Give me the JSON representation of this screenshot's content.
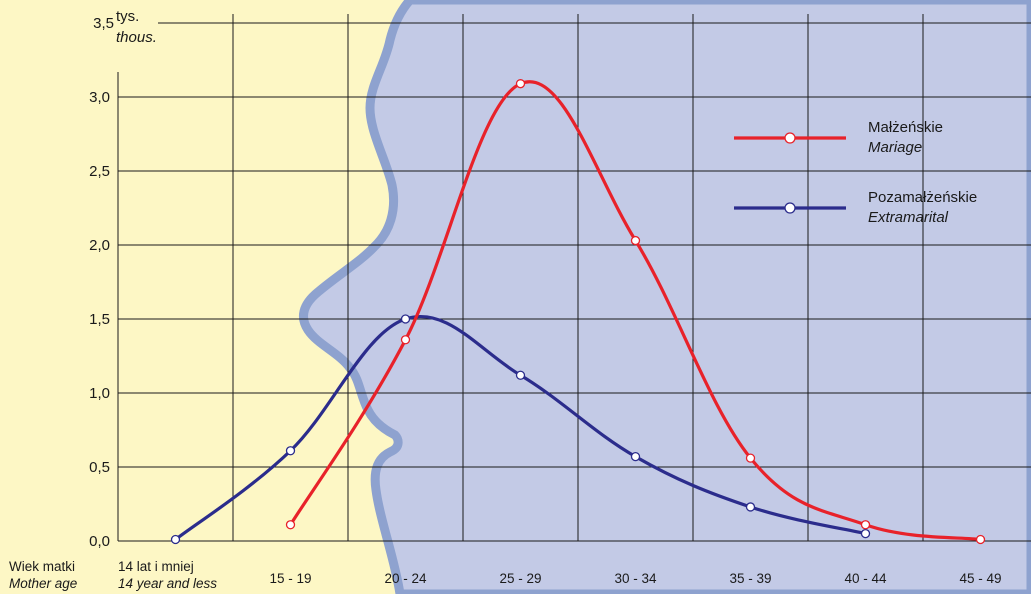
{
  "chart_data": {
    "type": "line",
    "y_unit": {
      "line1": "tys.",
      "line2": "thous."
    },
    "ylim": [
      0,
      3.5
    ],
    "y_ticks": [
      "0,0",
      "0,5",
      "1,0",
      "1,5",
      "2,0",
      "2,5",
      "3,0",
      "3,5"
    ],
    "y_tick_values": [
      0,
      0.5,
      1.0,
      1.5,
      2.0,
      2.5,
      3.0,
      3.5
    ],
    "categories": [
      {
        "line1": "14 lat i mniej",
        "line2": "14 year and less"
      },
      {
        "line1": "15 - 19",
        "line2": ""
      },
      {
        "line1": "20 - 24",
        "line2": ""
      },
      {
        "line1": "25 - 29",
        "line2": ""
      },
      {
        "line1": "30 - 34",
        "line2": ""
      },
      {
        "line1": "35 - 39",
        "line2": ""
      },
      {
        "line1": "40 - 44",
        "line2": ""
      },
      {
        "line1": "45 - 49",
        "line2": ""
      }
    ],
    "xlabel": {
      "line1": "Wiek matki",
      "line2": "Mother age"
    },
    "series": [
      {
        "name": "Małżeńskie",
        "name2": "Mariage",
        "color": "#e8222a",
        "values": [
          null,
          0.11,
          1.36,
          3.09,
          2.03,
          0.56,
          0.11,
          0.01
        ]
      },
      {
        "name": "Pozamałżeńskie",
        "name2": "Extramarital",
        "color": "#2b2c8c",
        "values": [
          0.01,
          0.61,
          1.5,
          1.12,
          0.57,
          0.23,
          0.05,
          null
        ]
      }
    ],
    "legend_position": "top-right",
    "grid": true,
    "colors": {
      "background": "#fdf7c5",
      "silhouette_fill": "#c3cae6",
      "silhouette_stroke": "#8ea2cf",
      "grid": "#1a1a1a"
    }
  }
}
